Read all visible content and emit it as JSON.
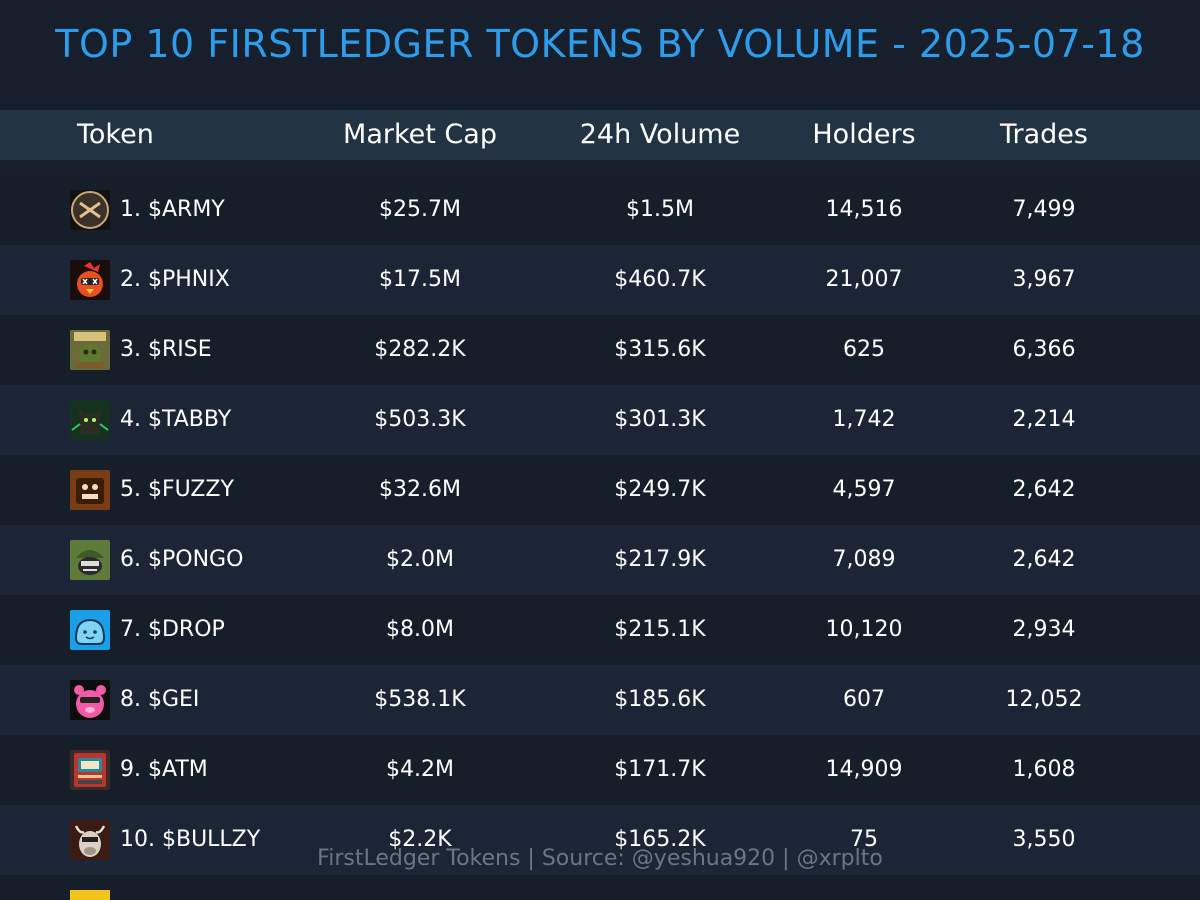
{
  "title": "TOP 10 FIRSTLEDGER TOKENS BY VOLUME - 2025-07-18",
  "columns": {
    "token": "Token",
    "market_cap": "Market Cap",
    "volume": "24h Volume",
    "holders": "Holders",
    "trades": "Trades"
  },
  "rows": [
    {
      "token": "1. $ARMY",
      "market_cap": "$25.7M",
      "volume": "$1.5M",
      "holders": "14,516",
      "trades": "7,499",
      "icon": "army-logo-icon"
    },
    {
      "token": "2. $PHNIX",
      "market_cap": "$17.5M",
      "volume": "$460.7K",
      "holders": "21,007",
      "trades": "3,967",
      "icon": "phoenix-bird-icon"
    },
    {
      "token": "3. $RISE",
      "market_cap": "$282.2K",
      "volume": "$315.6K",
      "holders": "625",
      "trades": "6,366",
      "icon": "rise-frog-icon"
    },
    {
      "token": "4. $TABBY",
      "market_cap": "$503.3K",
      "volume": "$301.3K",
      "holders": "1,742",
      "trades": "2,214",
      "icon": "tabby-cat-icon"
    },
    {
      "token": "5. $FUZZY",
      "market_cap": "$32.6M",
      "volume": "$249.7K",
      "holders": "4,597",
      "trades": "2,642",
      "icon": "fuzzy-bear-icon"
    },
    {
      "token": "6. $PONGO",
      "market_cap": "$2.0M",
      "volume": "$217.9K",
      "holders": "7,089",
      "trades": "2,642",
      "icon": "pongo-soldier-icon"
    },
    {
      "token": "7. $DROP",
      "market_cap": "$8.0M",
      "volume": "$215.1K",
      "holders": "10,120",
      "trades": "2,934",
      "icon": "drop-blob-icon"
    },
    {
      "token": "8. $GEI",
      "market_cap": "$538.1K",
      "volume": "$185.6K",
      "holders": "607",
      "trades": "12,052",
      "icon": "gei-bear-icon"
    },
    {
      "token": "9. $ATM",
      "market_cap": "$4.2M",
      "volume": "$171.7K",
      "holders": "14,909",
      "trades": "1,608",
      "icon": "atm-machine-icon"
    },
    {
      "token": "10. $BULLZY",
      "market_cap": "$2.2K",
      "volume": "$165.2K",
      "holders": "75",
      "trades": "3,550",
      "icon": "bullzy-bull-icon"
    }
  ],
  "footer": "FirstLedger Tokens | Source: @yeshua920 | @xrplto",
  "colors": {
    "background": "#161f2b",
    "title": "#2d9cea",
    "header_bg": "#223344",
    "row_even": "#1b2535",
    "row_odd": "#161e29",
    "footer_text": "#8a8f97"
  }
}
